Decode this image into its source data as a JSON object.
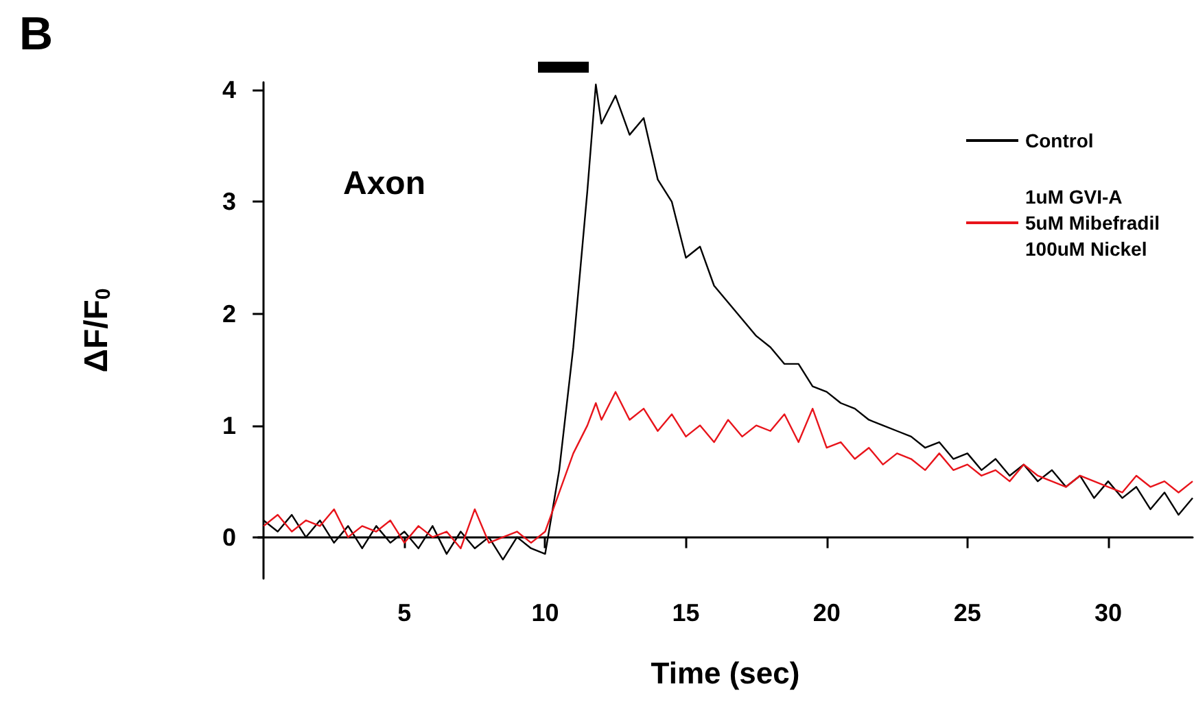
{
  "chart_data": {
    "type": "line",
    "title": "B",
    "xlabel": "Time (sec)",
    "ylabel": "ΔF/F$_{0}$",
    "annotations": [
      "Axon"
    ],
    "xlim": [
      -0.2,
      33
    ],
    "xticks": [
      5,
      10,
      15,
      20,
      25,
      30
    ],
    "ylim": [
      -0.37,
      4.07
    ],
    "yticks": [
      0,
      1,
      2,
      3,
      4
    ],
    "grid": false,
    "legend": "top right",
    "marker": "none",
    "line_style": "solid",
    "x": [
      0,
      0.5,
      1,
      1.5,
      2,
      2.5,
      3,
      3.5,
      4,
      4.5,
      5,
      5.5,
      6,
      6.5,
      7,
      7.5,
      8,
      8.5,
      9,
      9.5,
      10,
      10.5,
      11,
      11.5,
      11.8,
      12,
      12.5,
      13,
      13.5,
      14,
      14.5,
      15,
      15.5,
      16,
      16.5,
      17,
      17.5,
      18,
      18.5,
      19,
      19.5,
      20,
      20.5,
      21,
      21.5,
      22,
      22.5,
      23,
      23.5,
      24,
      24.5,
      25,
      25.5,
      26,
      26.5,
      27,
      27.5,
      28,
      28.5,
      29,
      29.5,
      30,
      30.5,
      31,
      31.5,
      32,
      32.5,
      33
    ],
    "series": [
      {
        "name": "Control",
        "color": "#000000",
        "values": [
          0.15,
          0.05,
          0.2,
          0.0,
          0.15,
          -0.05,
          0.1,
          -0.1,
          0.1,
          -0.05,
          0.05,
          -0.1,
          0.1,
          -0.15,
          0.05,
          -0.1,
          0.0,
          -0.2,
          0.0,
          -0.1,
          -0.15,
          0.6,
          1.7,
          3.1,
          4.05,
          3.7,
          3.95,
          3.6,
          3.75,
          3.2,
          3.0,
          2.5,
          2.6,
          2.25,
          2.1,
          1.95,
          1.8,
          1.7,
          1.55,
          1.55,
          1.35,
          1.3,
          1.2,
          1.15,
          1.05,
          1.0,
          0.95,
          0.9,
          0.8,
          0.85,
          0.7,
          0.75,
          0.6,
          0.7,
          0.55,
          0.65,
          0.5,
          0.6,
          0.45,
          0.55,
          0.35,
          0.5,
          0.35,
          0.45,
          0.25,
          0.4,
          0.2,
          0.35
        ]
      },
      {
        "name": "1uM GVI-A\n5uM Mibefradil\n100uM Nickel",
        "color": "#e8141b",
        "values": [
          0.1,
          0.2,
          0.05,
          0.15,
          0.1,
          0.25,
          0.0,
          0.1,
          0.05,
          0.15,
          -0.05,
          0.1,
          0.0,
          0.05,
          -0.1,
          0.25,
          -0.05,
          0.0,
          0.05,
          -0.05,
          0.05,
          0.4,
          0.75,
          1.0,
          1.2,
          1.05,
          1.3,
          1.05,
          1.15,
          0.95,
          1.1,
          0.9,
          1.0,
          0.85,
          1.05,
          0.9,
          1.0,
          0.95,
          1.1,
          0.85,
          1.15,
          0.8,
          0.85,
          0.7,
          0.8,
          0.65,
          0.75,
          0.7,
          0.6,
          0.75,
          0.6,
          0.65,
          0.55,
          0.6,
          0.5,
          0.65,
          0.55,
          0.5,
          0.45,
          0.55,
          0.5,
          0.45,
          0.4,
          0.55,
          0.45,
          0.5,
          0.4,
          0.5
        ]
      }
    ]
  }
}
